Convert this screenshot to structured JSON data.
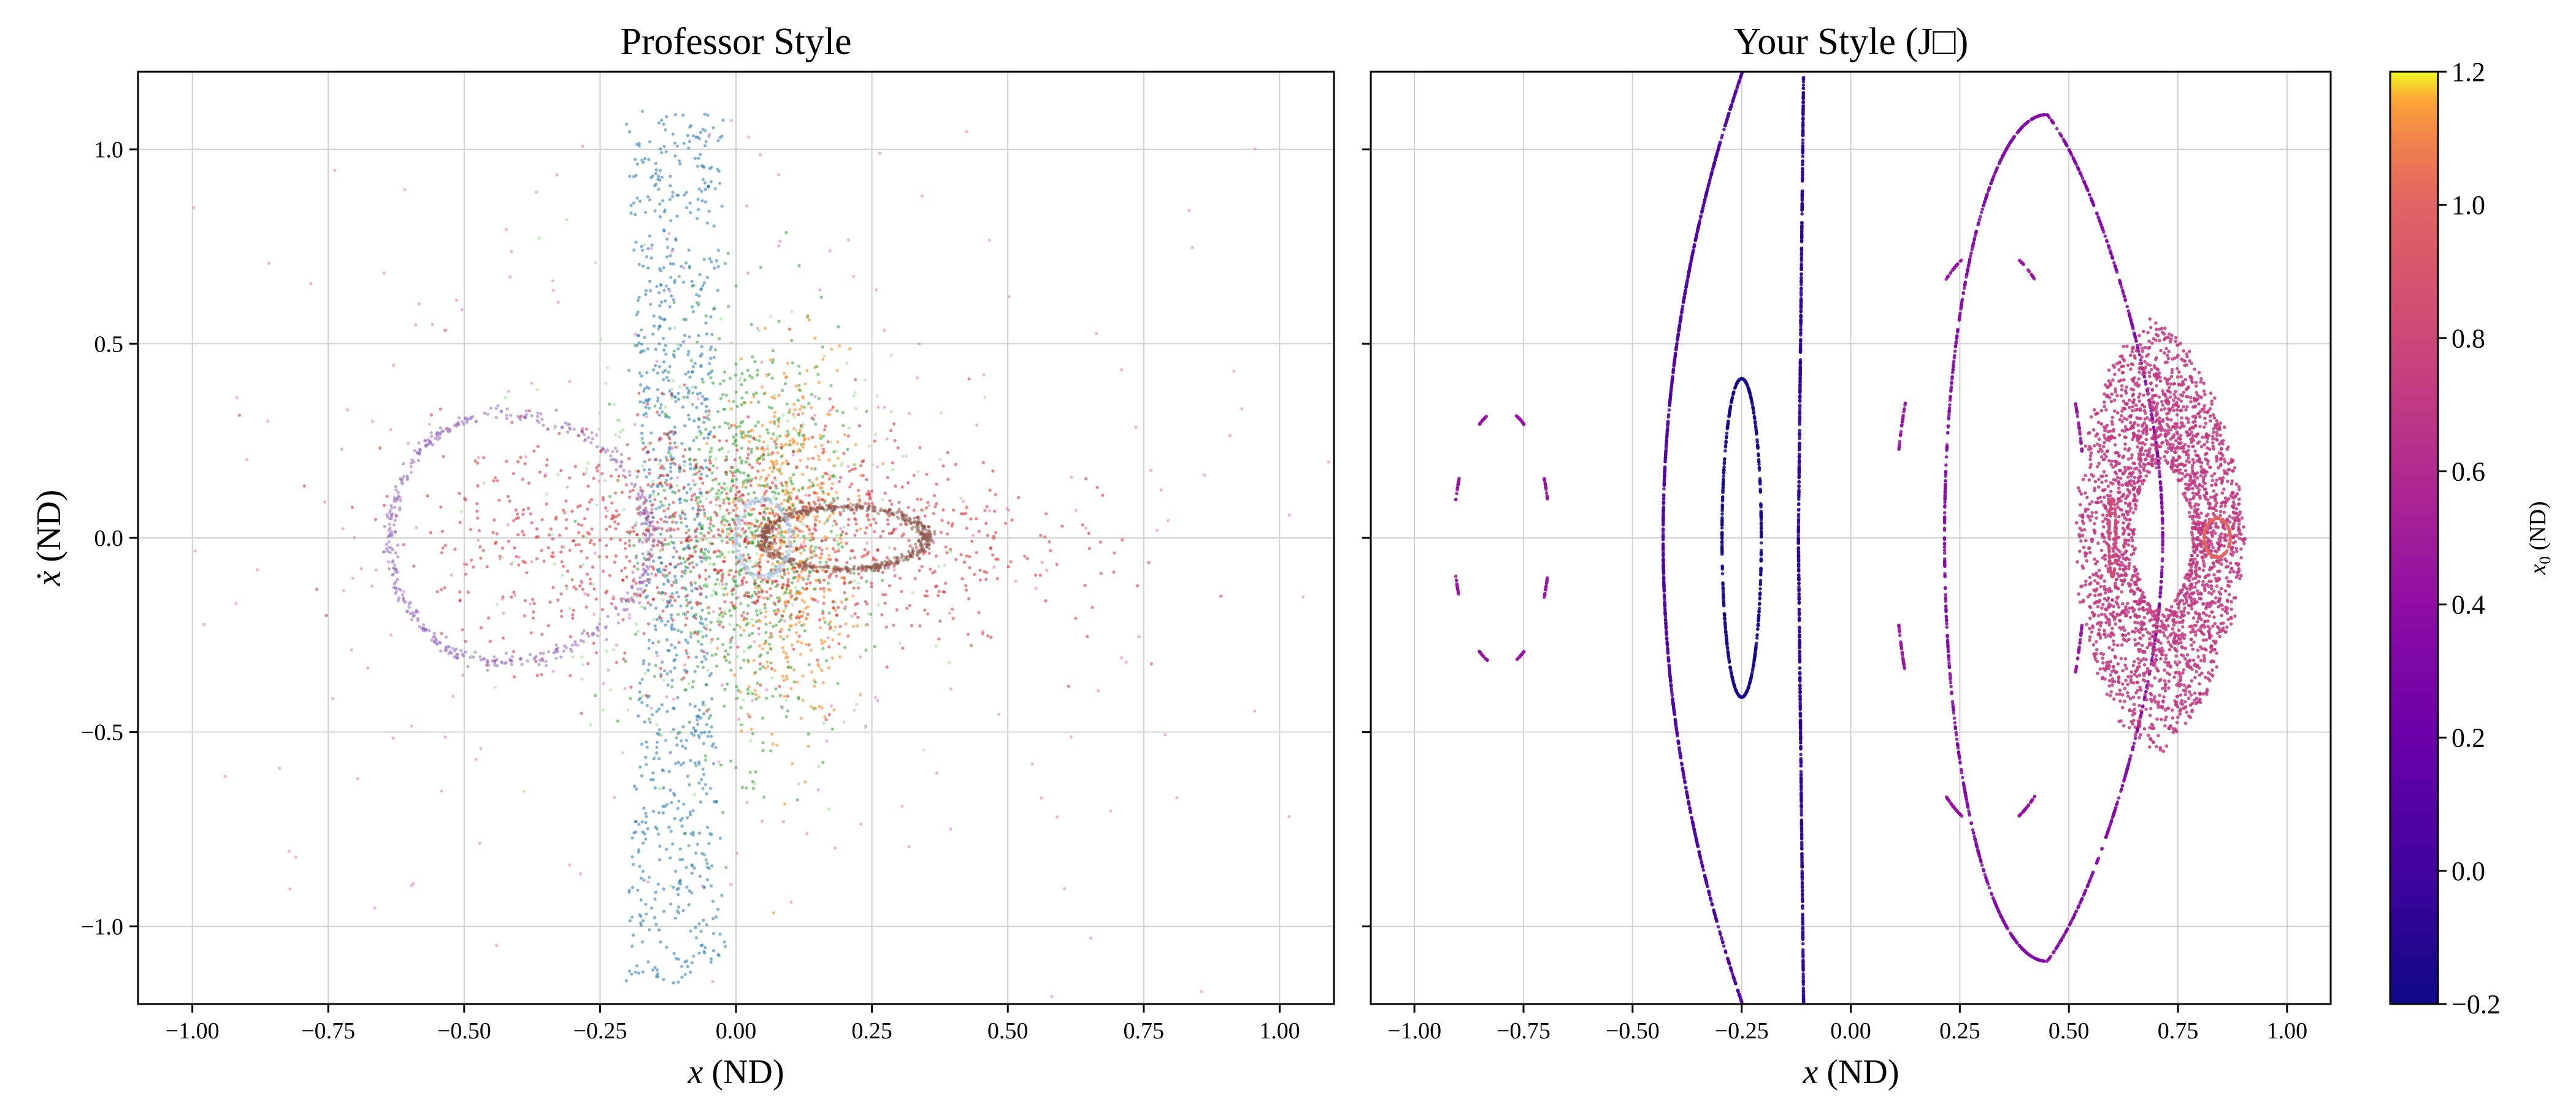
{
  "chart_data": [
    {
      "type": "scatter",
      "title": "Professor Style",
      "xlabel_var": "x",
      "xlabel_unit": "(ND)",
      "ylabel_var": "ẋ",
      "ylabel_unit": "(ND)",
      "xlim": [
        -1.1,
        1.1
      ],
      "ylim": [
        -1.2,
        1.2
      ],
      "xticks": [
        -1.0,
        -0.75,
        -0.5,
        -0.25,
        0.0,
        0.25,
        0.5,
        0.75,
        1.0
      ],
      "xtick_labels": [
        "−1.00",
        "−0.75",
        "−0.50",
        "−0.25",
        "0.00",
        "0.25",
        "0.50",
        "0.75",
        "1.00"
      ],
      "yticks": [
        -1.0,
        -0.5,
        0.0,
        0.5,
        1.0
      ],
      "ytick_labels": [
        "−1.0",
        "−0.5",
        "0.0",
        "0.5",
        "1.0"
      ],
      "grid": true,
      "series": [
        {
          "color": "#1f77b4",
          "shape": "band",
          "x_range": [
            -0.2,
            -0.02
          ],
          "y_range": [
            -1.15,
            1.1
          ],
          "count": 900
        },
        {
          "color": "#ff7f0e",
          "shape": "cloud",
          "center": [
            0.1,
            0.0
          ],
          "spread": [
            0.09,
            0.4
          ],
          "count": 500
        },
        {
          "color": "#2ca02c",
          "shape": "cloud",
          "center": [
            0.02,
            0.0
          ],
          "spread": [
            0.14,
            0.45
          ],
          "count": 700
        },
        {
          "color": "#d62728",
          "shape": "cloud",
          "center": [
            0.0,
            0.0
          ],
          "spread": [
            0.45,
            0.25
          ],
          "count": 1200
        },
        {
          "color": "#9467bd",
          "shape": "loop",
          "center": [
            -0.44,
            0.0
          ],
          "radii": [
            0.28,
            0.32
          ],
          "count": 500
        },
        {
          "color": "#8c564b",
          "shape": "ellipse",
          "center": [
            0.2,
            0.0
          ],
          "radii": [
            0.15,
            0.08
          ],
          "count": 600
        },
        {
          "color": "#e377c2",
          "shape": "cloud",
          "center": [
            0.0,
            0.0
          ],
          "spread": [
            0.9,
            0.9
          ],
          "count": 300
        },
        {
          "color": "#98df8a",
          "shape": "cloud",
          "center": [
            -0.05,
            0.0
          ],
          "spread": [
            0.35,
            0.45
          ],
          "count": 300
        },
        {
          "color": "#aec7e8",
          "shape": "ellipse",
          "center": [
            0.05,
            0.0
          ],
          "radii": [
            0.05,
            0.1
          ],
          "count": 200
        }
      ]
    },
    {
      "type": "scatter",
      "title": "Your Style (J□)",
      "xlabel_var": "x",
      "xlabel_unit": "(ND)",
      "xlim": [
        -1.1,
        1.1
      ],
      "ylim": [
        -1.2,
        1.2
      ],
      "xticks": [
        -1.0,
        -0.75,
        -0.5,
        -0.25,
        0.0,
        0.25,
        0.5,
        0.75,
        1.0
      ],
      "xtick_labels": [
        "−1.00",
        "−0.75",
        "−0.50",
        "−0.25",
        "0.00",
        "0.25",
        "0.50",
        "0.75",
        "1.00"
      ],
      "yticks": [
        -1.0,
        -0.5,
        0.0,
        0.5,
        1.0
      ],
      "grid": true,
      "colorscale": "plasma",
      "series": [
        {
          "x0": 0.02,
          "shape": "arc",
          "center": [
            -0.2,
            0.0
          ],
          "rx": 0.23,
          "ry": 1.35,
          "count": 900
        },
        {
          "x0": -0.18,
          "shape": "ellipse",
          "center": [
            -0.25,
            0.0
          ],
          "rx": 0.045,
          "ry": 0.41,
          "count": 500
        },
        {
          "x0": -0.1,
          "shape": "vline",
          "x": -0.11,
          "y_range": [
            -1.2,
            1.2
          ],
          "count": 700
        },
        {
          "x0": 0.22,
          "shape": "loop",
          "center": [
            0.45,
            0.0
          ],
          "rx": 0.235,
          "ry": 1.09,
          "count": 1100
        },
        {
          "x0": 0.3,
          "shape": "islands",
          "center": [
            -0.8,
            0.0
          ],
          "rx": 0.11,
          "ry": 0.33,
          "count": 160
        },
        {
          "x0": 0.3,
          "shape": "islands",
          "center": [
            0.32,
            0.0
          ],
          "rx": 0.22,
          "ry": 0.75,
          "count": 240
        },
        {
          "x0": 0.5,
          "shape": "rings",
          "center": [
            0.72,
            0.0
          ],
          "rx": 0.2,
          "ry": 0.55,
          "count": 2600
        },
        {
          "x0": 0.6,
          "shape": "ellipse",
          "center": [
            0.6,
            0.0
          ],
          "rx": 0.008,
          "ry": 0.1,
          "count": 120
        },
        {
          "x0": 0.75,
          "shape": "ellipse",
          "center": [
            0.84,
            0.0
          ],
          "rx": 0.03,
          "ry": 0.05,
          "count": 160
        }
      ]
    }
  ],
  "colorbar": {
    "label_var": "x",
    "label_sub": "0",
    "label_unit": "(ND)",
    "range": [
      -0.2,
      1.2
    ],
    "ticks": [
      -0.2,
      0.0,
      0.2,
      0.4,
      0.6,
      0.8,
      1.0,
      1.2
    ],
    "tick_labels": [
      "−0.2",
      "0.0",
      "0.2",
      "0.4",
      "0.6",
      "0.8",
      "1.0",
      "1.2"
    ]
  }
}
